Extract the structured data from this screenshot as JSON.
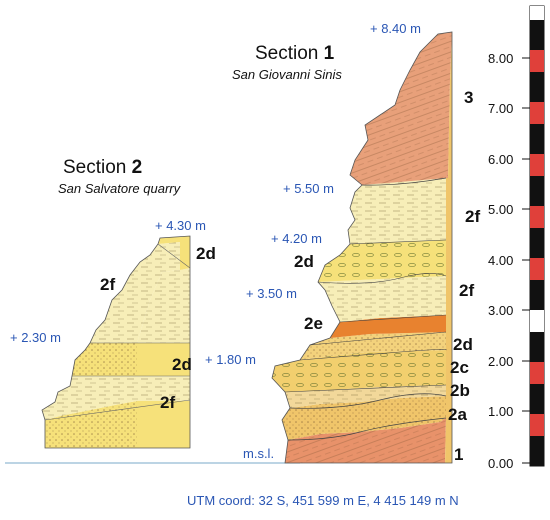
{
  "section1": {
    "title_word": "Section",
    "title_number": "1",
    "subtitle": "San Giovanni Sinis",
    "elevations": [
      "+ 8.40 m",
      "+ 5.50 m",
      "+ 4.20 m",
      "+ 3.50 m",
      "+ 1.80 m"
    ],
    "msl_label": "m.s.l.",
    "units": [
      "3",
      "2f",
      "2d",
      "2f",
      "2e",
      "2d",
      "2c",
      "2b",
      "2a",
      "1"
    ]
  },
  "section2": {
    "title_word": "Section",
    "title_number": "2",
    "subtitle": "San Salvatore  quarry",
    "elevations": [
      "+ 4.30 m",
      "+ 2.30 m"
    ],
    "units": [
      "2d",
      "2f",
      "2d",
      "2f"
    ]
  },
  "scale": {
    "ticks": [
      "8.00",
      "7.00",
      "6.00",
      "5.00",
      "4.00",
      "3.00",
      "2.00",
      "1.00",
      "0.00"
    ],
    "bar_colors": [
      "#111111",
      "#ffffff",
      "#e0403a"
    ]
  },
  "utm": "UTM coord: 32 S,  451 599 m E,   4 415 149 m N",
  "colors": {
    "unit1": "#e8926a",
    "unit2_orange": "#f0c56a",
    "unit2_yellow": "#f6e17a",
    "unit2_pale": "#f7eeb8",
    "unit2e": "#e8822f",
    "unit3": "#e8a07a",
    "elevation_text": "#2a56b4"
  }
}
